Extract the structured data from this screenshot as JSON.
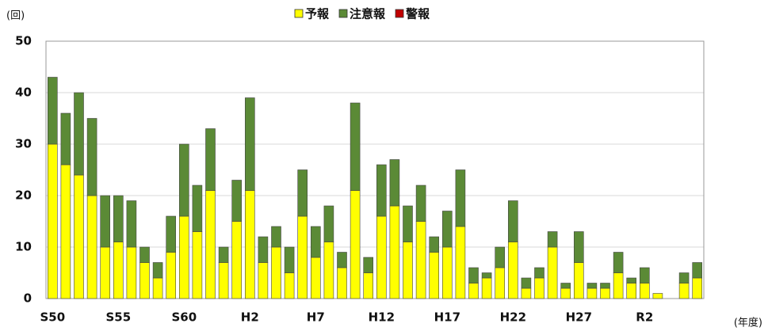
{
  "chart_data": {
    "type": "bar",
    "stacked": true,
    "y_label": "(回)",
    "x_label": "(年度)",
    "categories": [
      "S50",
      null,
      null,
      null,
      null,
      "S55",
      null,
      null,
      null,
      null,
      "S60",
      null,
      null,
      null,
      null,
      "H2",
      null,
      null,
      null,
      null,
      "H7",
      null,
      null,
      null,
      null,
      "H12",
      null,
      null,
      null,
      null,
      "H17",
      null,
      null,
      null,
      null,
      "H22",
      null,
      null,
      null,
      null,
      "H27",
      null,
      null,
      null,
      null,
      "R2",
      null,
      null,
      null,
      null
    ],
    "series": [
      {
        "name": "予報",
        "color": "#ffff00",
        "values": [
          30,
          26,
          24,
          20,
          10,
          11,
          10,
          7,
          4,
          9,
          16,
          13,
          21,
          7,
          15,
          21,
          7,
          10,
          5,
          16,
          8,
          11,
          6,
          21,
          5,
          16,
          18,
          11,
          15,
          9,
          10,
          14,
          3,
          4,
          6,
          11,
          2,
          4,
          10,
          2,
          7,
          2,
          2,
          5,
          3,
          3,
          1,
          0,
          3,
          4
        ]
      },
      {
        "name": "注意報",
        "color": "#5b8a36",
        "values": [
          13,
          10,
          16,
          15,
          10,
          9,
          9,
          3,
          3,
          7,
          14,
          9,
          12,
          3,
          8,
          18,
          5,
          4,
          5,
          9,
          6,
          7,
          3,
          17,
          3,
          10,
          9,
          7,
          7,
          3,
          7,
          11,
          3,
          1,
          4,
          8,
          2,
          2,
          3,
          1,
          6,
          1,
          1,
          4,
          1,
          3,
          0,
          0,
          2,
          3
        ]
      },
      {
        "name": "警報",
        "color": "#c00000",
        "values": [
          0,
          0,
          0,
          0,
          0,
          0,
          0,
          0,
          0,
          0,
          0,
          0,
          0,
          0,
          0,
          0,
          0,
          0,
          0,
          0,
          0,
          0,
          0,
          0,
          0,
          0,
          0,
          0,
          0,
          0,
          0,
          0,
          0,
          0,
          0,
          0,
          0,
          0,
          0,
          0,
          0,
          0,
          0,
          0,
          0,
          0,
          0,
          0,
          0,
          0
        ]
      }
    ],
    "ylim": [
      0,
      50
    ],
    "yticks": [
      0,
      10,
      20,
      30,
      40,
      50
    ],
    "grid": true,
    "legend": "top"
  }
}
